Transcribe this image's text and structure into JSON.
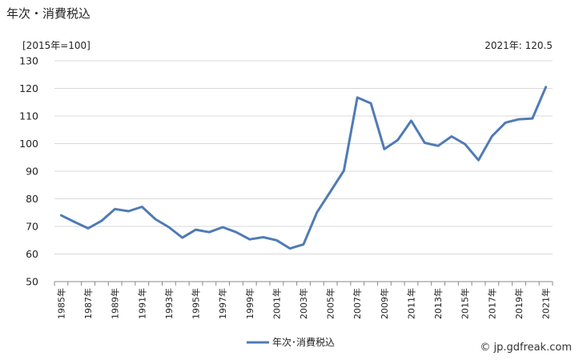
{
  "header": {
    "title": "年次・消費税込",
    "unit": "[2015年=100]",
    "annotation": "2021年: 120.5"
  },
  "footer": {
    "credit": "© jp.gdfreak.com"
  },
  "chart_data": {
    "type": "line",
    "title": "年次・消費税込",
    "ylabel": "[2015年=100]",
    "ylim": [
      50,
      130
    ],
    "yticks": [
      50,
      60,
      70,
      80,
      90,
      100,
      110,
      120,
      130
    ],
    "grid": true,
    "legend_position": "bottom",
    "x": [
      "1985年",
      "1986年",
      "1987年",
      "1988年",
      "1989年",
      "1990年",
      "1991年",
      "1992年",
      "1993年",
      "1994年",
      "1995年",
      "1996年",
      "1997年",
      "1998年",
      "1999年",
      "2000年",
      "2001年",
      "2002年",
      "2003年",
      "2004年",
      "2005年",
      "2006年",
      "2007年",
      "2008年",
      "2009年",
      "2010年",
      "2011年",
      "2012年",
      "2013年",
      "2014年",
      "2015年",
      "2016年",
      "2017年",
      "2018年",
      "2019年",
      "2020年",
      "2021年"
    ],
    "xtick_labels": [
      "1985年",
      "1987年",
      "1989年",
      "1991年",
      "1993年",
      "1995年",
      "1997年",
      "1999年",
      "2001年",
      "2003年",
      "2005年",
      "2007年",
      "2009年",
      "2011年",
      "2013年",
      "2015年",
      "2017年",
      "2019年",
      "2021年"
    ],
    "series": [
      {
        "name": "年次･消費税込",
        "color": "#4f7bb5",
        "values": [
          74.0,
          71.6,
          69.3,
          72.0,
          76.3,
          75.5,
          77.1,
          72.6,
          69.7,
          65.9,
          68.8,
          67.9,
          69.7,
          67.9,
          65.3,
          66.1,
          65.0,
          62.0,
          63.5,
          75.1,
          82.6,
          90.2,
          116.7,
          114.6,
          98.0,
          101.3,
          108.3,
          100.3,
          99.2,
          102.6,
          99.8,
          94.0,
          102.7,
          107.6,
          108.8,
          109.1,
          120.5
        ]
      }
    ]
  }
}
